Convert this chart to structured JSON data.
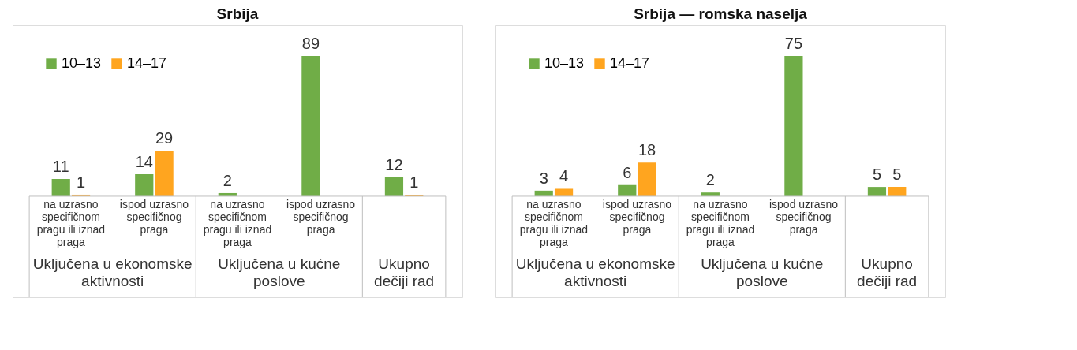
{
  "chart_data": [
    {
      "type": "bar",
      "title": "Srbija",
      "categories": [
        "na uzrasno specifičnom pragu ili iznad praga",
        "ispod uzrasno specifičnog praga",
        "na uzrasno specifičnom pragu ili iznad praga",
        "ispod uzrasno specifičnog praga",
        null
      ],
      "series": [
        {
          "name": "10–13",
          "color": "#70ad47",
          "values": [
            11,
            14,
            2,
            89,
            12
          ]
        },
        {
          "name": "14–17",
          "color": "#ffa51f",
          "values": [
            1,
            29,
            null,
            null,
            1
          ]
        }
      ],
      "annotations": [
        "Uključena u ekonomske aktivnosti",
        "Uključena u kućne poslove",
        "Ukupno dečiji rad"
      ],
      "data_labels": true,
      "legend": "top left"
    },
    {
      "type": "bar",
      "title": "Srbija — romska naselja",
      "categories": [
        "na uzrasno specifičnom pragu ili iznad praga",
        "ispod uzrasno specifičnog praga",
        "na uzrasno specifičnom pragu ili iznad praga",
        "ispod uzrasno specifičnog praga",
        null
      ],
      "series": [
        {
          "name": "10–13",
          "color": "#70ad47",
          "values": [
            3,
            6,
            2,
            75,
            5
          ]
        },
        {
          "name": "14–17",
          "color": "#ffa51f",
          "values": [
            4,
            18,
            null,
            null,
            5
          ]
        }
      ],
      "annotations": [
        "Uključena u ekonomske aktivnosti",
        "Uključena u kućne poslove",
        "Ukupno dečiji rad"
      ],
      "data_labels": true,
      "legend": "top left"
    }
  ]
}
